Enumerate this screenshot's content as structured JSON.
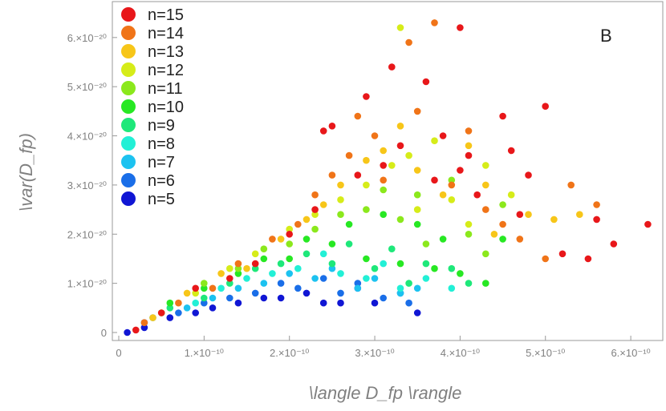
{
  "chart_data": {
    "type": "scatter",
    "panel_label": "B",
    "xlabel": "\\langle D_fp \\rangle",
    "ylabel": "\\var(D_fp)",
    "xlim": [
      0,
      6.3e-10
    ],
    "ylim": [
      0,
      6.6e-20
    ],
    "grid": false,
    "legend_position": "top-left",
    "x_ticks": [
      {
        "value": 0,
        "label": "0"
      },
      {
        "value": 1e-10,
        "label": "1.×10⁻¹⁰"
      },
      {
        "value": 2e-10,
        "label": "2.×10⁻¹⁰"
      },
      {
        "value": 3e-10,
        "label": "3.×10⁻¹⁰"
      },
      {
        "value": 4e-10,
        "label": "4.×10⁻¹⁰"
      },
      {
        "value": 5e-10,
        "label": "5.×10⁻¹⁰"
      },
      {
        "value": 6e-10,
        "label": "6.×10⁻¹⁰"
      }
    ],
    "y_ticks": [
      {
        "value": 0,
        "label": "0"
      },
      {
        "value": 1e-20,
        "label": "1.×10⁻²⁰"
      },
      {
        "value": 2e-20,
        "label": "2.×10⁻²⁰"
      },
      {
        "value": 3e-20,
        "label": "3.×10⁻²⁰"
      },
      {
        "value": 4e-20,
        "label": "4.×10⁻²⁰"
      },
      {
        "value": 5e-20,
        "label": "5.×10⁻²⁰"
      },
      {
        "value": 6e-20,
        "label": "6.×10⁻²⁰"
      }
    ],
    "series": [
      {
        "name": "n=15",
        "color": "#e8171a",
        "points": [
          [
            2e-11,
            5e-22
          ],
          [
            5e-11,
            4e-21
          ],
          [
            9e-11,
            9e-21
          ],
          [
            1.3e-10,
            1.1e-20
          ],
          [
            1.6e-10,
            1.4e-20
          ],
          [
            2e-10,
            2e-20
          ],
          [
            2.3e-10,
            2.5e-20
          ],
          [
            2.4e-10,
            4.1e-20
          ],
          [
            2.5e-10,
            4.2e-20
          ],
          [
            2.8e-10,
            3.2e-20
          ],
          [
            2.9e-10,
            4.8e-20
          ],
          [
            3.1e-10,
            3.4e-20
          ],
          [
            3.3e-10,
            3.8e-20
          ],
          [
            3.2e-10,
            5.4e-20
          ],
          [
            3.6e-10,
            5.1e-20
          ],
          [
            3.7e-10,
            3.1e-20
          ],
          [
            3.8e-10,
            4e-20
          ],
          [
            4e-10,
            6.2e-20
          ],
          [
            4e-10,
            3.3e-20
          ],
          [
            4.2e-10,
            2.8e-20
          ],
          [
            4.1e-10,
            3.6e-20
          ],
          [
            4.5e-10,
            4.4e-20
          ],
          [
            4.6e-10,
            3.7e-20
          ],
          [
            4.7e-10,
            2.4e-20
          ],
          [
            4.8e-10,
            3.2e-20
          ],
          [
            5e-10,
            4.6e-20
          ],
          [
            5.2e-10,
            1.6e-20
          ],
          [
            5.5e-10,
            1.5e-20
          ],
          [
            5.6e-10,
            2.3e-20
          ],
          [
            5.8e-10,
            1.8e-20
          ],
          [
            6.2e-10,
            2.2e-20
          ]
        ]
      },
      {
        "name": "n=14",
        "color": "#f07418",
        "points": [
          [
            3e-11,
            2e-21
          ],
          [
            7e-11,
            6e-21
          ],
          [
            1.1e-10,
            9e-21
          ],
          [
            1.4e-10,
            1.4e-20
          ],
          [
            1.8e-10,
            1.9e-20
          ],
          [
            2.1e-10,
            2.2e-20
          ],
          [
            2.3e-10,
            2.8e-20
          ],
          [
            2.5e-10,
            3.2e-20
          ],
          [
            2.7e-10,
            3.6e-20
          ],
          [
            2.8e-10,
            4.4e-20
          ],
          [
            3e-10,
            4e-20
          ],
          [
            3.1e-10,
            3.1e-20
          ],
          [
            3.4e-10,
            5.9e-20
          ],
          [
            3.5e-10,
            4.5e-20
          ],
          [
            3.7e-10,
            6.3e-20
          ],
          [
            3.9e-10,
            3e-20
          ],
          [
            4.1e-10,
            4.1e-20
          ],
          [
            4.3e-10,
            2.5e-20
          ],
          [
            4.5e-10,
            2.2e-20
          ],
          [
            4.7e-10,
            1.9e-20
          ],
          [
            5e-10,
            1.5e-20
          ],
          [
            5.3e-10,
            3e-20
          ],
          [
            5.6e-10,
            2.6e-20
          ]
        ]
      },
      {
        "name": "n=13",
        "color": "#f7c619",
        "points": [
          [
            4e-11,
            3e-21
          ],
          [
            8e-11,
            8e-21
          ],
          [
            1.2e-10,
            1.2e-20
          ],
          [
            1.5e-10,
            1.3e-20
          ],
          [
            1.9e-10,
            1.9e-20
          ],
          [
            2.2e-10,
            2.3e-20
          ],
          [
            2.4e-10,
            2.6e-20
          ],
          [
            2.6e-10,
            3e-20
          ],
          [
            2.9e-10,
            3.5e-20
          ],
          [
            3.1e-10,
            3.7e-20
          ],
          [
            3.3e-10,
            4.2e-20
          ],
          [
            3.5e-10,
            3.3e-20
          ],
          [
            3.8e-10,
            2.8e-20
          ],
          [
            4.1e-10,
            3.8e-20
          ],
          [
            4.3e-10,
            3e-20
          ],
          [
            4.4e-10,
            2e-20
          ],
          [
            4.8e-10,
            2.4e-20
          ],
          [
            5.1e-10,
            2.3e-20
          ],
          [
            5.4e-10,
            2.4e-20
          ]
        ]
      },
      {
        "name": "n=12",
        "color": "#d6ec19",
        "points": [
          [
            5e-11,
            4e-21
          ],
          [
            9e-11,
            8e-21
          ],
          [
            1.3e-10,
            1.3e-20
          ],
          [
            1.6e-10,
            1.6e-20
          ],
          [
            2e-10,
            2.1e-20
          ],
          [
            2.3e-10,
            2.4e-20
          ],
          [
            2.6e-10,
            2.7e-20
          ],
          [
            2.9e-10,
            3e-20
          ],
          [
            3.2e-10,
            3.4e-20
          ],
          [
            3.3e-10,
            6.2e-20
          ],
          [
            3.4e-10,
            3.6e-20
          ],
          [
            3.5e-10,
            2.5e-20
          ],
          [
            3.7e-10,
            3.9e-20
          ],
          [
            3.9e-10,
            2.7e-20
          ],
          [
            4.1e-10,
            2.2e-20
          ],
          [
            4.3e-10,
            3.4e-20
          ],
          [
            4.6e-10,
            2.8e-20
          ]
        ]
      },
      {
        "name": "n=11",
        "color": "#8be81c",
        "points": [
          [
            5e-11,
            4e-21
          ],
          [
            1e-10,
            1e-20
          ],
          [
            1.4e-10,
            1.3e-20
          ],
          [
            1.7e-10,
            1.7e-20
          ],
          [
            2e-10,
            1.8e-20
          ],
          [
            2.3e-10,
            2.1e-20
          ],
          [
            2.6e-10,
            2.4e-20
          ],
          [
            2.9e-10,
            2.5e-20
          ],
          [
            3.1e-10,
            2.9e-20
          ],
          [
            3.3e-10,
            2.3e-20
          ],
          [
            3.5e-10,
            2.8e-20
          ],
          [
            3.6e-10,
            1.8e-20
          ],
          [
            3.9e-10,
            3.1e-20
          ],
          [
            4.1e-10,
            2e-20
          ],
          [
            4.3e-10,
            1.6e-20
          ],
          [
            4.5e-10,
            2.6e-20
          ]
        ]
      },
      {
        "name": "n=10",
        "color": "#27e823",
        "points": [
          [
            6e-11,
            6e-21
          ],
          [
            1e-10,
            9e-21
          ],
          [
            1.4e-10,
            1.2e-20
          ],
          [
            1.7e-10,
            1.5e-20
          ],
          [
            2e-10,
            1.5e-20
          ],
          [
            2.2e-10,
            1.9e-20
          ],
          [
            2.5e-10,
            1.8e-20
          ],
          [
            2.7e-10,
            2.2e-20
          ],
          [
            2.9e-10,
            1.5e-20
          ],
          [
            3.1e-10,
            2.4e-20
          ],
          [
            3.3e-10,
            1.4e-20
          ],
          [
            3.5e-10,
            2.2e-20
          ],
          [
            3.7e-10,
            1.3e-20
          ],
          [
            3.8e-10,
            1.9e-20
          ],
          [
            4e-10,
            1.2e-20
          ],
          [
            4.3e-10,
            1e-20
          ],
          [
            4.5e-10,
            1.9e-20
          ]
        ]
      },
      {
        "name": "n=9",
        "color": "#1ee87a",
        "points": [
          [
            6e-11,
            5e-21
          ],
          [
            1e-10,
            7e-21
          ],
          [
            1.3e-10,
            1e-20
          ],
          [
            1.6e-10,
            1.3e-20
          ],
          [
            1.9e-10,
            1.4e-20
          ],
          [
            2.2e-10,
            1.6e-20
          ],
          [
            2.5e-10,
            1.4e-20
          ],
          [
            2.7e-10,
            1.8e-20
          ],
          [
            3e-10,
            1.3e-20
          ],
          [
            3.2e-10,
            1.7e-20
          ],
          [
            3.4e-10,
            1e-20
          ],
          [
            3.6e-10,
            1.4e-20
          ],
          [
            3.9e-10,
            1.3e-20
          ],
          [
            4.1e-10,
            1e-20
          ]
        ]
      },
      {
        "name": "n=8",
        "color": "#22f0d6",
        "points": [
          [
            5e-11,
            4e-21
          ],
          [
            9e-11,
            6e-21
          ],
          [
            1.2e-10,
            9e-21
          ],
          [
            1.5e-10,
            1.1e-20
          ],
          [
            1.8e-10,
            1.2e-20
          ],
          [
            2.1e-10,
            1.3e-20
          ],
          [
            2.4e-10,
            1.6e-20
          ],
          [
            2.6e-10,
            1.2e-20
          ],
          [
            2.9e-10,
            1.1e-20
          ],
          [
            3.1e-10,
            1.4e-20
          ],
          [
            3.3e-10,
            9e-21
          ],
          [
            3.6e-10,
            1.1e-20
          ],
          [
            3.9e-10,
            9e-21
          ]
        ]
      },
      {
        "name": "n=7",
        "color": "#1cc2f0",
        "points": [
          [
            4e-11,
            3e-21
          ],
          [
            8e-11,
            5e-21
          ],
          [
            1.1e-10,
            7e-21
          ],
          [
            1.4e-10,
            9e-21
          ],
          [
            1.7e-10,
            1e-20
          ],
          [
            2e-10,
            1.2e-20
          ],
          [
            2.3e-10,
            1.1e-20
          ],
          [
            2.5e-10,
            1.3e-20
          ],
          [
            2.8e-10,
            9e-21
          ],
          [
            3e-10,
            1.1e-20
          ],
          [
            3.3e-10,
            8e-21
          ],
          [
            3.5e-10,
            9e-21
          ]
        ]
      },
      {
        "name": "n=6",
        "color": "#1a6ee8",
        "points": [
          [
            3e-11,
            2e-21
          ],
          [
            7e-11,
            4e-21
          ],
          [
            1e-10,
            6e-21
          ],
          [
            1.3e-10,
            7e-21
          ],
          [
            1.6e-10,
            8e-21
          ],
          [
            1.9e-10,
            1e-20
          ],
          [
            2.1e-10,
            9e-21
          ],
          [
            2.4e-10,
            1.1e-20
          ],
          [
            2.6e-10,
            8e-21
          ],
          [
            2.8e-10,
            1e-20
          ],
          [
            3.1e-10,
            7e-21
          ],
          [
            3.3e-10,
            8e-21
          ],
          [
            3.4e-10,
            6e-21
          ]
        ]
      },
      {
        "name": "n=5",
        "color": "#1016d4",
        "points": [
          [
            1e-11,
            0.0
          ],
          [
            3e-11,
            1e-21
          ],
          [
            6e-11,
            3e-21
          ],
          [
            9e-11,
            4e-21
          ],
          [
            1.1e-10,
            5e-21
          ],
          [
            1.4e-10,
            6e-21
          ],
          [
            1.7e-10,
            7e-21
          ],
          [
            1.9e-10,
            7e-21
          ],
          [
            2.2e-10,
            8e-21
          ],
          [
            2.4e-10,
            6e-21
          ],
          [
            2.6e-10,
            6e-21
          ],
          [
            2.8e-10,
            9e-21
          ],
          [
            3e-10,
            6e-21
          ],
          [
            3.5e-10,
            4e-21
          ]
        ]
      }
    ]
  }
}
